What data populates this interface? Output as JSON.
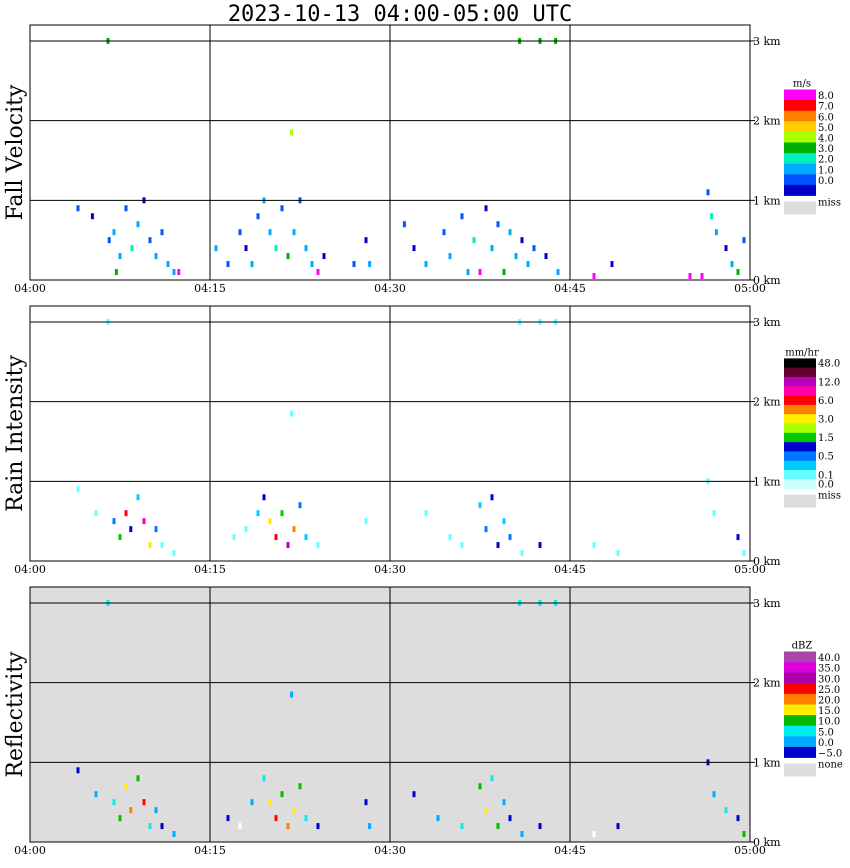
{
  "title": "2023-10-13   04:00-05:00 UTC",
  "chart_data": [
    {
      "type": "heatmap",
      "ylabel": "Fall Velocity",
      "xlim": [
        "04:00",
        "05:00"
      ],
      "xticks": [
        "04:00",
        "04:15",
        "04:30",
        "04:45",
        "05:00"
      ],
      "ylim_km": [
        0,
        3.2
      ],
      "yticks": [
        "0 km",
        "1 km",
        "2 km",
        "3 km"
      ],
      "grid": true,
      "background": "#ffffff",
      "scale": {
        "unit": "m/s",
        "missing_label": "miss",
        "missing_color": "#dddddd",
        "bins": [
          {
            "color": "#ff00ff",
            "label": "8.0"
          },
          {
            "color": "#ff0000",
            "label": "7.0"
          },
          {
            "color": "#ff8000",
            "label": "6.0"
          },
          {
            "color": "#ffcc00",
            "label": "5.0"
          },
          {
            "color": "#aaff00",
            "label": "4.0"
          },
          {
            "color": "#00b000",
            "label": "3.0"
          },
          {
            "color": "#00eebb",
            "label": "2.0"
          },
          {
            "color": "#00aaff",
            "label": "1.0"
          },
          {
            "color": "#0055ff",
            "label": "0.0"
          },
          {
            "color": "#0000cc",
            "label": ""
          }
        ]
      },
      "cells": [
        {
          "t": 6.5,
          "z": 3.0,
          "c": "#00b000"
        },
        {
          "t": 40.8,
          "z": 3.0,
          "c": "#00b000"
        },
        {
          "t": 42.5,
          "z": 3.0,
          "c": "#00b000"
        },
        {
          "t": 43.8,
          "z": 3.0,
          "c": "#00b000"
        },
        {
          "t": 21.8,
          "z": 1.85,
          "c": "#aaff00"
        },
        {
          "t": 4.0,
          "z": 0.9,
          "c": "#0055ff"
        },
        {
          "t": 5.2,
          "z": 0.8,
          "c": "#0000cc"
        },
        {
          "t": 6.6,
          "z": 0.5,
          "c": "#0055ff"
        },
        {
          "t": 7.0,
          "z": 0.6,
          "c": "#00aaff"
        },
        {
          "t": 7.5,
          "z": 0.3,
          "c": "#00aaff"
        },
        {
          "t": 8.0,
          "z": 0.9,
          "c": "#0055ff"
        },
        {
          "t": 8.5,
          "z": 0.4,
          "c": "#00eebb"
        },
        {
          "t": 9.0,
          "z": 0.7,
          "c": "#00aaff"
        },
        {
          "t": 9.5,
          "z": 1.0,
          "c": "#0000cc"
        },
        {
          "t": 10.0,
          "z": 0.5,
          "c": "#0055ff"
        },
        {
          "t": 10.5,
          "z": 0.3,
          "c": "#00aaff"
        },
        {
          "t": 7.2,
          "z": 0.1,
          "c": "#00b000"
        },
        {
          "t": 11.0,
          "z": 0.6,
          "c": "#0055ff"
        },
        {
          "t": 11.5,
          "z": 0.2,
          "c": "#00aaff"
        },
        {
          "t": 12.0,
          "z": 0.1,
          "c": "#00aaff"
        },
        {
          "t": 12.4,
          "z": 0.1,
          "c": "#ff00ff"
        },
        {
          "t": 17.5,
          "z": 0.6,
          "c": "#0055ff"
        },
        {
          "t": 18.0,
          "z": 0.4,
          "c": "#0000cc"
        },
        {
          "t": 18.5,
          "z": 0.2,
          "c": "#00aaff"
        },
        {
          "t": 19.0,
          "z": 0.8,
          "c": "#0055ff"
        },
        {
          "t": 19.5,
          "z": 1.0,
          "c": "#00aaff"
        },
        {
          "t": 20.0,
          "z": 0.6,
          "c": "#00aaff"
        },
        {
          "t": 20.5,
          "z": 0.4,
          "c": "#00eebb"
        },
        {
          "t": 21.0,
          "z": 0.9,
          "c": "#0055ff"
        },
        {
          "t": 21.5,
          "z": 0.3,
          "c": "#00b000"
        },
        {
          "t": 22.0,
          "z": 0.6,
          "c": "#00aaff"
        },
        {
          "t": 22.5,
          "z": 1.0,
          "c": "#0055ff"
        },
        {
          "t": 23.0,
          "z": 0.4,
          "c": "#00aaff"
        },
        {
          "t": 23.5,
          "z": 0.2,
          "c": "#00aaff"
        },
        {
          "t": 24.0,
          "z": 0.1,
          "c": "#ff00ff"
        },
        {
          "t": 24.5,
          "z": 0.3,
          "c": "#0000cc"
        },
        {
          "t": 16.5,
          "z": 0.2,
          "c": "#0055ff"
        },
        {
          "t": 15.5,
          "z": 0.4,
          "c": "#00aaff"
        },
        {
          "t": 27.0,
          "z": 0.2,
          "c": "#0055ff"
        },
        {
          "t": 28.0,
          "z": 0.5,
          "c": "#0000cc"
        },
        {
          "t": 28.3,
          "z": 0.2,
          "c": "#00aaff"
        },
        {
          "t": 31.2,
          "z": 0.7,
          "c": "#0055ff"
        },
        {
          "t": 32.0,
          "z": 0.4,
          "c": "#0000cc"
        },
        {
          "t": 33.0,
          "z": 0.2,
          "c": "#00aaff"
        },
        {
          "t": 34.5,
          "z": 0.6,
          "c": "#0055ff"
        },
        {
          "t": 35.0,
          "z": 0.3,
          "c": "#00aaff"
        },
        {
          "t": 36.0,
          "z": 0.8,
          "c": "#0055ff"
        },
        {
          "t": 36.5,
          "z": 0.1,
          "c": "#00aaff"
        },
        {
          "t": 37.0,
          "z": 0.5,
          "c": "#00eebb"
        },
        {
          "t": 37.5,
          "z": 0.1,
          "c": "#ff00ff"
        },
        {
          "t": 38.0,
          "z": 0.9,
          "c": "#0000cc"
        },
        {
          "t": 38.5,
          "z": 0.4,
          "c": "#00aaff"
        },
        {
          "t": 39.0,
          "z": 0.7,
          "c": "#0055ff"
        },
        {
          "t": 39.5,
          "z": 0.1,
          "c": "#00b000"
        },
        {
          "t": 40.0,
          "z": 0.6,
          "c": "#00aaff"
        },
        {
          "t": 40.5,
          "z": 0.3,
          "c": "#00aaff"
        },
        {
          "t": 41.0,
          "z": 0.5,
          "c": "#0000cc"
        },
        {
          "t": 41.5,
          "z": 0.2,
          "c": "#00aaff"
        },
        {
          "t": 42.0,
          "z": 0.4,
          "c": "#0055ff"
        },
        {
          "t": 43.0,
          "z": 0.3,
          "c": "#0000cc"
        },
        {
          "t": 44.0,
          "z": 0.1,
          "c": "#00aaff"
        },
        {
          "t": 47.0,
          "z": 0.05,
          "c": "#ff00ff"
        },
        {
          "t": 48.5,
          "z": 0.2,
          "c": "#0000cc"
        },
        {
          "t": 55.0,
          "z": 0.05,
          "c": "#ff00ff"
        },
        {
          "t": 56.0,
          "z": 0.05,
          "c": "#ff00ff"
        },
        {
          "t": 56.5,
          "z": 1.1,
          "c": "#0055ff"
        },
        {
          "t": 56.8,
          "z": 0.8,
          "c": "#00eebb"
        },
        {
          "t": 57.2,
          "z": 0.6,
          "c": "#00aaff"
        },
        {
          "t": 58.0,
          "z": 0.4,
          "c": "#0000cc"
        },
        {
          "t": 58.5,
          "z": 0.2,
          "c": "#00aaff"
        },
        {
          "t": 59.0,
          "z": 0.1,
          "c": "#00b000"
        },
        {
          "t": 59.5,
          "z": 0.5,
          "c": "#0055ff"
        }
      ]
    },
    {
      "type": "heatmap",
      "ylabel": "Rain Intensity",
      "xlim": [
        "04:00",
        "05:00"
      ],
      "xticks": [
        "04:00",
        "04:15",
        "04:30",
        "04:45",
        "05:00"
      ],
      "ylim_km": [
        0,
        3.2
      ],
      "yticks": [
        "0 km",
        "1 km",
        "2 km",
        "3 km"
      ],
      "grid": true,
      "background": "#ffffff",
      "scale": {
        "unit": "mm/hr",
        "missing_label": "miss",
        "missing_color": "#dddddd",
        "bins": [
          {
            "color": "#000000",
            "label": "48.0"
          },
          {
            "color": "#660033",
            "label": ""
          },
          {
            "color": "#bb00bb",
            "label": "12.0"
          },
          {
            "color": "#ff00aa",
            "label": ""
          },
          {
            "color": "#ff0000",
            "label": "6.0"
          },
          {
            "color": "#ff8000",
            "label": ""
          },
          {
            "color": "#ffee00",
            "label": "3.0"
          },
          {
            "color": "#aaff00",
            "label": ""
          },
          {
            "color": "#00cc00",
            "label": "1.5"
          },
          {
            "color": "#0000cc",
            "label": ""
          },
          {
            "color": "#0077ff",
            "label": "0.5"
          },
          {
            "color": "#00ccff",
            "label": ""
          },
          {
            "color": "#66ffff",
            "label": "0.1"
          },
          {
            "color": "#ccffff",
            "label": "0.0"
          }
        ]
      },
      "cells": [
        {
          "t": 6.5,
          "z": 3.0,
          "c": "#66ffff"
        },
        {
          "t": 40.8,
          "z": 3.0,
          "c": "#66ffff"
        },
        {
          "t": 42.5,
          "z": 3.0,
          "c": "#66ffff"
        },
        {
          "t": 43.8,
          "z": 3.0,
          "c": "#66ffff"
        },
        {
          "t": 21.8,
          "z": 1.85,
          "c": "#66ffff"
        },
        {
          "t": 4.0,
          "z": 0.9,
          "c": "#66ffff"
        },
        {
          "t": 5.5,
          "z": 0.6,
          "c": "#66ffff"
        },
        {
          "t": 7.0,
          "z": 0.5,
          "c": "#0077ff"
        },
        {
          "t": 7.5,
          "z": 0.3,
          "c": "#00cc00"
        },
        {
          "t": 8.0,
          "z": 0.6,
          "c": "#ff0000"
        },
        {
          "t": 8.4,
          "z": 0.4,
          "c": "#0000cc"
        },
        {
          "t": 9.0,
          "z": 0.8,
          "c": "#00ccff"
        },
        {
          "t": 9.5,
          "z": 0.5,
          "c": "#ff00aa"
        },
        {
          "t": 10.0,
          "z": 0.2,
          "c": "#ffee00"
        },
        {
          "t": 10.5,
          "z": 0.4,
          "c": "#0077ff"
        },
        {
          "t": 11.0,
          "z": 0.2,
          "c": "#66ffff"
        },
        {
          "t": 12.0,
          "z": 0.1,
          "c": "#66ffff"
        },
        {
          "t": 17.0,
          "z": 0.3,
          "c": "#66ffff"
        },
        {
          "t": 18.0,
          "z": 0.4,
          "c": "#66ffff"
        },
        {
          "t": 19.0,
          "z": 0.6,
          "c": "#00ccff"
        },
        {
          "t": 19.5,
          "z": 0.8,
          "c": "#0000cc"
        },
        {
          "t": 20.0,
          "z": 0.5,
          "c": "#ffee00"
        },
        {
          "t": 20.5,
          "z": 0.3,
          "c": "#ff0000"
        },
        {
          "t": 21.0,
          "z": 0.6,
          "c": "#00cc00"
        },
        {
          "t": 21.5,
          "z": 0.2,
          "c": "#bb00bb"
        },
        {
          "t": 22.0,
          "z": 0.4,
          "c": "#ff8000"
        },
        {
          "t": 22.5,
          "z": 0.7,
          "c": "#0077ff"
        },
        {
          "t": 23.0,
          "z": 0.3,
          "c": "#00ccff"
        },
        {
          "t": 24.0,
          "z": 0.2,
          "c": "#66ffff"
        },
        {
          "t": 28.0,
          "z": 0.5,
          "c": "#66ffff"
        },
        {
          "t": 33.0,
          "z": 0.6,
          "c": "#66ffff"
        },
        {
          "t": 35.0,
          "z": 0.3,
          "c": "#66ffff"
        },
        {
          "t": 36.0,
          "z": 0.2,
          "c": "#66ffff"
        },
        {
          "t": 37.5,
          "z": 0.7,
          "c": "#00ccff"
        },
        {
          "t": 38.0,
          "z": 0.4,
          "c": "#0077ff"
        },
        {
          "t": 38.5,
          "z": 0.8,
          "c": "#0000cc"
        },
        {
          "t": 39.0,
          "z": 0.2,
          "c": "#0000cc"
        },
        {
          "t": 39.5,
          "z": 0.5,
          "c": "#00ccff"
        },
        {
          "t": 40.0,
          "z": 0.3,
          "c": "#0077ff"
        },
        {
          "t": 41.0,
          "z": 0.1,
          "c": "#66ffff"
        },
        {
          "t": 42.5,
          "z": 0.2,
          "c": "#0000cc"
        },
        {
          "t": 47.0,
          "z": 0.2,
          "c": "#66ffff"
        },
        {
          "t": 49.0,
          "z": 0.1,
          "c": "#66ffff"
        },
        {
          "t": 56.5,
          "z": 1.0,
          "c": "#66ffff"
        },
        {
          "t": 57.0,
          "z": 0.6,
          "c": "#66ffff"
        },
        {
          "t": 59.0,
          "z": 0.3,
          "c": "#0000cc"
        },
        {
          "t": 59.5,
          "z": 0.1,
          "c": "#66ffff"
        }
      ]
    },
    {
      "type": "heatmap",
      "ylabel": "Reflectivity",
      "xlim": [
        "04:00",
        "05:00"
      ],
      "xticks": [
        "04:00",
        "04:15",
        "04:30",
        "04:45",
        "05:00"
      ],
      "ylim_km": [
        0,
        3.2
      ],
      "yticks": [
        "0 km",
        "1 km",
        "2 km",
        "3 km"
      ],
      "grid": true,
      "background": "#dddddd",
      "scale": {
        "unit": "dBZ",
        "missing_label": "none",
        "missing_color": "#dddddd",
        "bins": [
          {
            "color": "#aa44aa",
            "label": "40.0"
          },
          {
            "color": "#dd00dd",
            "label": "35.0"
          },
          {
            "color": "#aa00aa",
            "label": "30.0"
          },
          {
            "color": "#ff0000",
            "label": "25.0"
          },
          {
            "color": "#ff8000",
            "label": "20.0"
          },
          {
            "color": "#ffee00",
            "label": "15.0"
          },
          {
            "color": "#00bb00",
            "label": "10.0"
          },
          {
            "color": "#00eeee",
            "label": "5.0"
          },
          {
            "color": "#00aaff",
            "label": "0.0"
          },
          {
            "color": "#0000cc",
            "label": "−5.0"
          }
        ]
      },
      "cells": [
        {
          "t": 6.5,
          "z": 3.0,
          "c": "#00eeee"
        },
        {
          "t": 40.8,
          "z": 3.0,
          "c": "#00eeee"
        },
        {
          "t": 42.5,
          "z": 3.0,
          "c": "#00eeee"
        },
        {
          "t": 43.8,
          "z": 3.0,
          "c": "#00eeee"
        },
        {
          "t": 21.8,
          "z": 1.85,
          "c": "#00aaff"
        },
        {
          "t": 4.0,
          "z": 0.9,
          "c": "#0000cc"
        },
        {
          "t": 5.5,
          "z": 0.6,
          "c": "#00aaff"
        },
        {
          "t": 7.0,
          "z": 0.5,
          "c": "#00eeee"
        },
        {
          "t": 7.5,
          "z": 0.3,
          "c": "#00bb00"
        },
        {
          "t": 8.0,
          "z": 0.7,
          "c": "#ffee00"
        },
        {
          "t": 8.4,
          "z": 0.4,
          "c": "#ff8000"
        },
        {
          "t": 9.0,
          "z": 0.8,
          "c": "#00bb00"
        },
        {
          "t": 9.5,
          "z": 0.5,
          "c": "#ff0000"
        },
        {
          "t": 10.0,
          "z": 0.2,
          "c": "#00eeee"
        },
        {
          "t": 10.5,
          "z": 0.4,
          "c": "#00aaff"
        },
        {
          "t": 11.0,
          "z": 0.2,
          "c": "#0000cc"
        },
        {
          "t": 12.0,
          "z": 0.1,
          "c": "#00aaff"
        },
        {
          "t": 16.5,
          "z": 0.3,
          "c": "#0000cc"
        },
        {
          "t": 17.5,
          "z": 0.2,
          "c": "#ffffff"
        },
        {
          "t": 18.5,
          "z": 0.5,
          "c": "#00aaff"
        },
        {
          "t": 19.5,
          "z": 0.8,
          "c": "#00eeee"
        },
        {
          "t": 20.0,
          "z": 0.5,
          "c": "#ffee00"
        },
        {
          "t": 20.5,
          "z": 0.3,
          "c": "#ff0000"
        },
        {
          "t": 21.0,
          "z": 0.6,
          "c": "#00bb00"
        },
        {
          "t": 21.5,
          "z": 0.2,
          "c": "#ff8000"
        },
        {
          "t": 22.0,
          "z": 0.4,
          "c": "#ffee00"
        },
        {
          "t": 22.5,
          "z": 0.7,
          "c": "#00bb00"
        },
        {
          "t": 23.0,
          "z": 0.3,
          "c": "#00eeee"
        },
        {
          "t": 24.0,
          "z": 0.2,
          "c": "#0000cc"
        },
        {
          "t": 28.0,
          "z": 0.5,
          "c": "#0000cc"
        },
        {
          "t": 28.3,
          "z": 0.2,
          "c": "#00aaff"
        },
        {
          "t": 32.0,
          "z": 0.6,
          "c": "#0000cc"
        },
        {
          "t": 34.0,
          "z": 0.3,
          "c": "#00aaff"
        },
        {
          "t": 36.0,
          "z": 0.2,
          "c": "#00eeee"
        },
        {
          "t": 37.5,
          "z": 0.7,
          "c": "#00bb00"
        },
        {
          "t": 38.0,
          "z": 0.4,
          "c": "#ffee00"
        },
        {
          "t": 38.5,
          "z": 0.8,
          "c": "#00eeee"
        },
        {
          "t": 39.0,
          "z": 0.2,
          "c": "#00bb00"
        },
        {
          "t": 39.5,
          "z": 0.5,
          "c": "#00aaff"
        },
        {
          "t": 40.0,
          "z": 0.3,
          "c": "#0000cc"
        },
        {
          "t": 41.0,
          "z": 0.1,
          "c": "#00aaff"
        },
        {
          "t": 42.5,
          "z": 0.2,
          "c": "#0000cc"
        },
        {
          "t": 47.0,
          "z": 0.1,
          "c": "#ffffff"
        },
        {
          "t": 49.0,
          "z": 0.2,
          "c": "#0000cc"
        },
        {
          "t": 56.5,
          "z": 1.0,
          "c": "#0000cc"
        },
        {
          "t": 57.0,
          "z": 0.6,
          "c": "#00aaff"
        },
        {
          "t": 58.0,
          "z": 0.4,
          "c": "#00eeee"
        },
        {
          "t": 59.0,
          "z": 0.3,
          "c": "#0000cc"
        },
        {
          "t": 59.5,
          "z": 0.1,
          "c": "#00bb00"
        }
      ]
    }
  ]
}
